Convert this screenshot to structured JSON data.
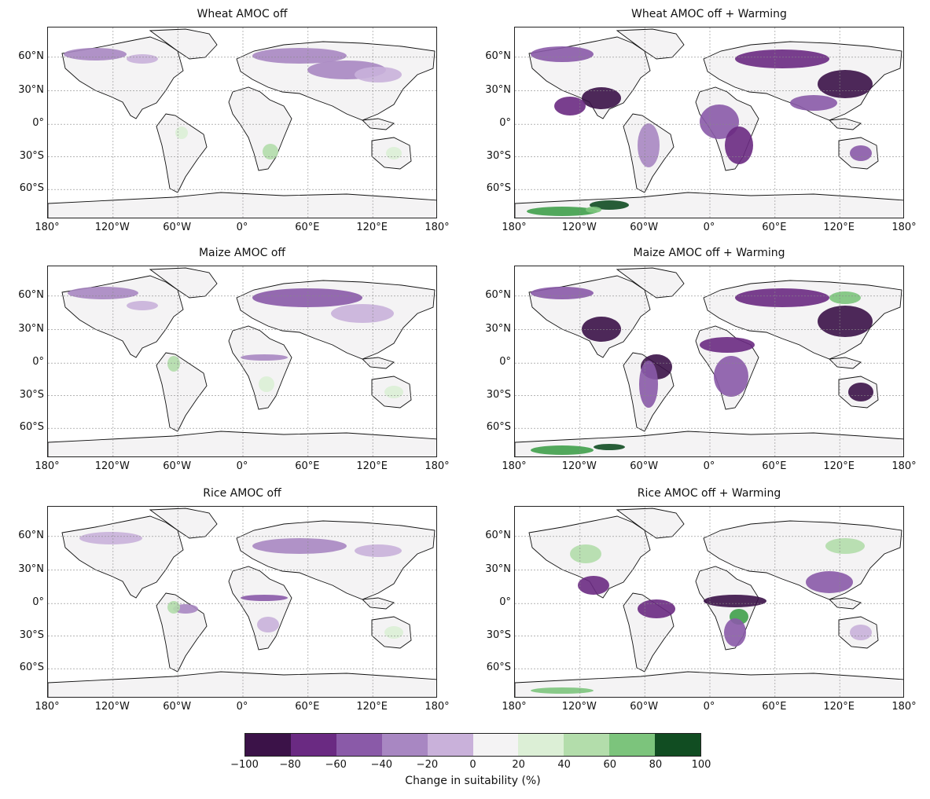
{
  "figure": {
    "panels": [
      {
        "id": "wheat-amoc-off",
        "title": "Wheat AMOC off",
        "scenario": "amoc-off",
        "crop": "wheat"
      },
      {
        "id": "wheat-amoc-off-warming",
        "title": "Wheat AMOC off + Warming",
        "scenario": "amoc-off-warming",
        "crop": "wheat"
      },
      {
        "id": "maize-amoc-off",
        "title": "Maize AMOC off",
        "scenario": "amoc-off",
        "crop": "maize"
      },
      {
        "id": "maize-amoc-off-warming",
        "title": "Maize AMOC off + Warming",
        "scenario": "amoc-off-warming",
        "crop": "maize"
      },
      {
        "id": "rice-amoc-off",
        "title": "Rice AMOC off",
        "scenario": "amoc-off",
        "crop": "rice"
      },
      {
        "id": "rice-amoc-off-warming",
        "title": "Rice AMOC off + Warming",
        "scenario": "amoc-off-warming",
        "crop": "rice"
      }
    ],
    "lat_labels": [
      "60°N",
      "30°N",
      "0°",
      "30°S",
      "60°S"
    ],
    "lon_labels": [
      "180°",
      "120°W",
      "60°W",
      "0°",
      "60°E",
      "120°E",
      "180°"
    ],
    "colorbar": {
      "label": "Change in suitability (%)",
      "ticks": [
        "−100",
        "−80",
        "−60",
        "−40",
        "−20",
        "0",
        "20",
        "40",
        "60",
        "80",
        "100"
      ],
      "colors": [
        "#3b1248",
        "#6a2a82",
        "#8a5aa8",
        "#a887c2",
        "#c9b1da",
        "#f4f3f4",
        "#dcefd6",
        "#b3ddab",
        "#7cc47c",
        "#40a04b",
        "#114d22"
      ]
    }
  }
}
